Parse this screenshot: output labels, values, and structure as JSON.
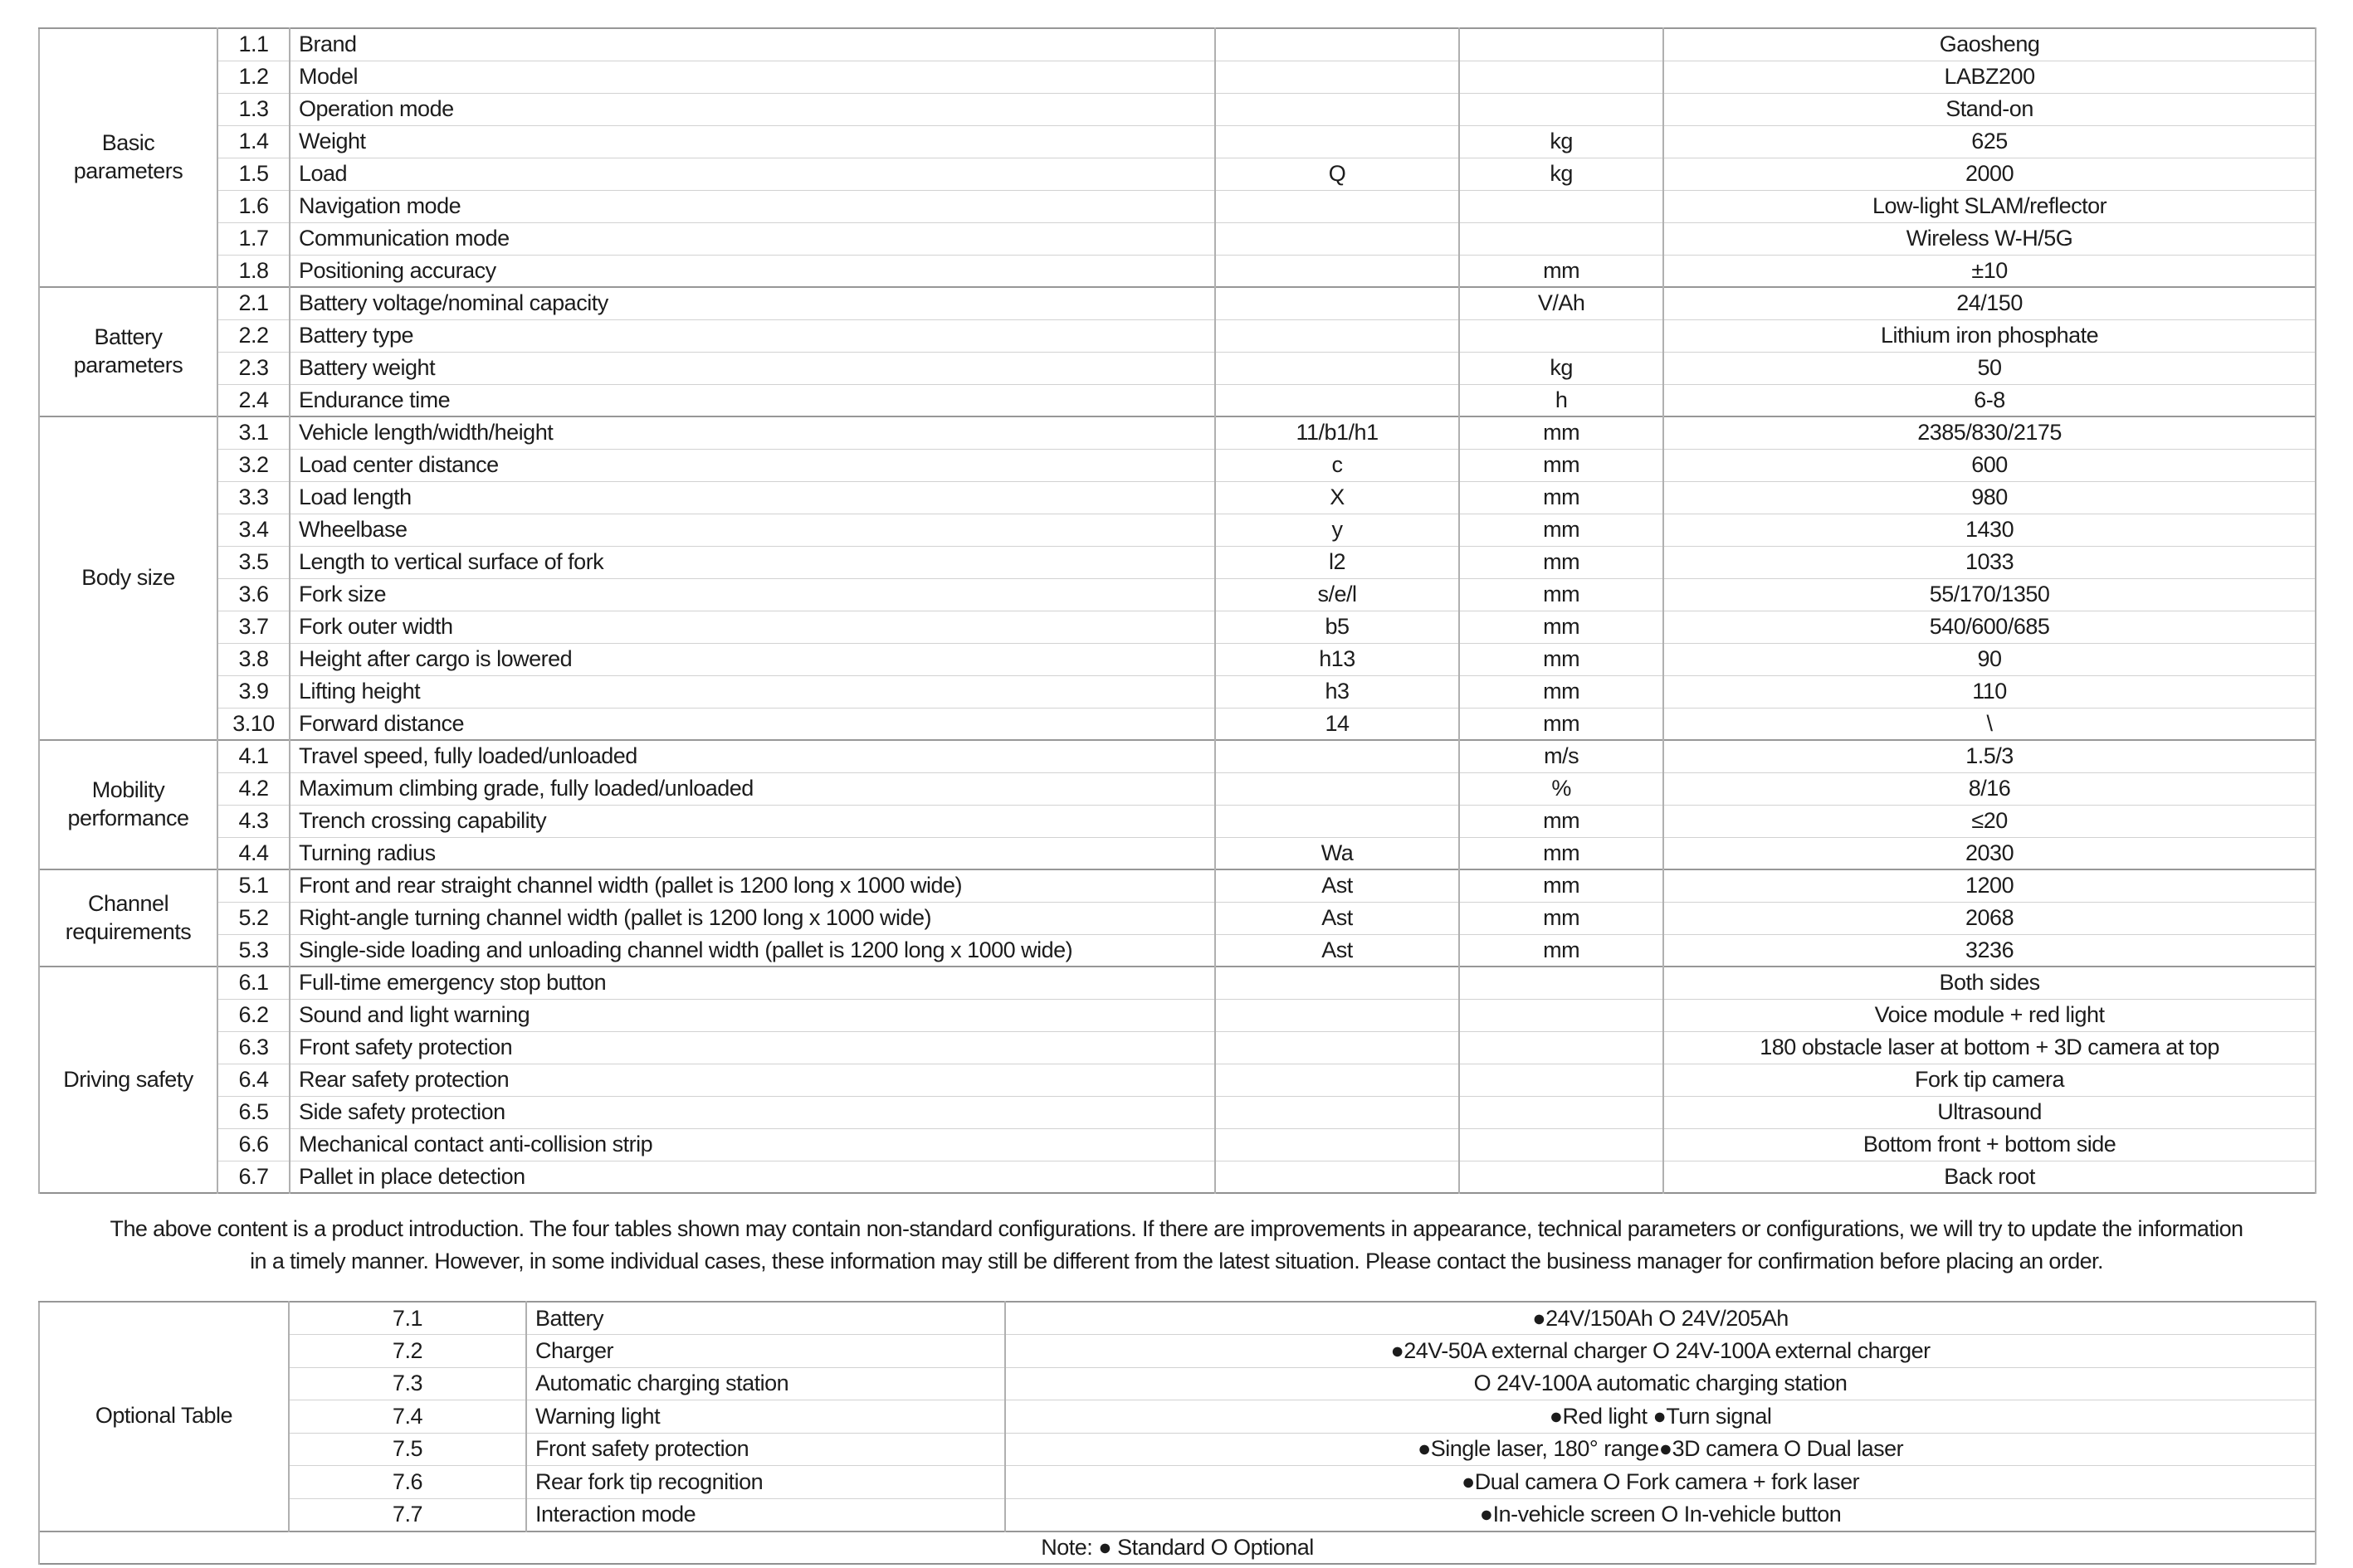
{
  "main_table": {
    "sections": [
      {
        "category": "Basic parameters",
        "rows": [
          {
            "num": "1.1",
            "desc": "Brand",
            "symbol": "",
            "unit": "",
            "value": "Gaosheng"
          },
          {
            "num": "1.2",
            "desc": "Model",
            "symbol": "",
            "unit": "",
            "value": "LABZ200"
          },
          {
            "num": "1.3",
            "desc": "Operation mode",
            "symbol": "",
            "unit": "",
            "value": "Stand-on"
          },
          {
            "num": "1.4",
            "desc": "Weight",
            "symbol": "",
            "unit": "kg",
            "value": "625"
          },
          {
            "num": "1.5",
            "desc": "Load",
            "symbol": "Q",
            "unit": "kg",
            "value": "2000"
          },
          {
            "num": "1.6",
            "desc": "Navigation mode",
            "symbol": "",
            "unit": "",
            "value": "Low-light SLAM/reflector"
          },
          {
            "num": "1.7",
            "desc": "Communication mode",
            "symbol": "",
            "unit": "",
            "value": "Wireless W-H/5G"
          },
          {
            "num": "1.8",
            "desc": "Positioning accuracy",
            "symbol": "",
            "unit": "mm",
            "value": "±10"
          }
        ]
      },
      {
        "category": "Battery parameters",
        "rows": [
          {
            "num": "2.1",
            "desc": "Battery voltage/nominal capacity",
            "symbol": "",
            "unit": "V/Ah",
            "value": "24/150"
          },
          {
            "num": "2.2",
            "desc": "Battery type",
            "symbol": "",
            "unit": "",
            "value": "Lithium iron phosphate"
          },
          {
            "num": "2.3",
            "desc": "Battery weight",
            "symbol": "",
            "unit": "kg",
            "value": "50"
          },
          {
            "num": "2.4",
            "desc": "Endurance time",
            "symbol": "",
            "unit": "h",
            "value": "6-8"
          }
        ]
      },
      {
        "category": "Body size",
        "rows": [
          {
            "num": "3.1",
            "desc": "Vehicle length/width/height",
            "symbol": "11/b1/h1",
            "unit": "mm",
            "value": "2385/830/2175"
          },
          {
            "num": "3.2",
            "desc": "Load center distance",
            "symbol": "c",
            "unit": "mm",
            "value": "600"
          },
          {
            "num": "3.3",
            "desc": "Load length",
            "symbol": "X",
            "unit": "mm",
            "value": "980"
          },
          {
            "num": "3.4",
            "desc": "Wheelbase",
            "symbol": "y",
            "unit": "mm",
            "value": "1430"
          },
          {
            "num": "3.5",
            "desc": "Length to vertical surface of fork",
            "symbol": "l2",
            "unit": "mm",
            "value": "1033"
          },
          {
            "num": "3.6",
            "desc": "Fork size",
            "symbol": "s/e/l",
            "unit": "mm",
            "value": "55/170/1350"
          },
          {
            "num": "3.7",
            "desc": "Fork outer width",
            "symbol": "b5",
            "unit": "mm",
            "value": "540/600/685"
          },
          {
            "num": "3.8",
            "desc": "Height after cargo is lowered",
            "symbol": "h13",
            "unit": "mm",
            "value": "90"
          },
          {
            "num": "3.9",
            "desc": "Lifting height",
            "symbol": "h3",
            "unit": "mm",
            "value": "110"
          },
          {
            "num": "3.10",
            "desc": "Forward distance",
            "symbol": "14",
            "unit": "mm",
            "value": "\\"
          }
        ]
      },
      {
        "category": "Mobility performance",
        "rows": [
          {
            "num": "4.1",
            "desc": "Travel speed, fully loaded/unloaded",
            "symbol": "",
            "unit": "m/s",
            "value": "1.5/3"
          },
          {
            "num": "4.2",
            "desc": "Maximum climbing grade, fully loaded/unloaded",
            "symbol": "",
            "unit": "%",
            "value": "8/16"
          },
          {
            "num": "4.3",
            "desc": "Trench crossing capability",
            "symbol": "",
            "unit": "mm",
            "value": "≤20"
          },
          {
            "num": "4.4",
            "desc": "Turning radius",
            "symbol": "Wa",
            "unit": "mm",
            "value": "2030"
          }
        ]
      },
      {
        "category": "Channel requirements",
        "rows": [
          {
            "num": "5.1",
            "desc": "Front and rear straight channel width (pallet is 1200 long x 1000 wide)",
            "symbol": "Ast",
            "unit": "mm",
            "value": "1200"
          },
          {
            "num": "5.2",
            "desc": "Right-angle turning channel width (pallet is 1200 long x 1000 wide)",
            "symbol": "Ast",
            "unit": "mm",
            "value": "2068"
          },
          {
            "num": "5.3",
            "desc": "Single-side loading and unloading channel width (pallet is 1200 long x 1000 wide)",
            "symbol": "Ast",
            "unit": "mm",
            "value": "3236"
          }
        ]
      },
      {
        "category": "Driving safety",
        "rows": [
          {
            "num": "6.1",
            "desc": "Full-time emergency stop button",
            "symbol": "",
            "unit": "",
            "value": "Both sides"
          },
          {
            "num": "6.2",
            "desc": "Sound and light warning",
            "symbol": "",
            "unit": "",
            "value": "Voice module + red light"
          },
          {
            "num": "6.3",
            "desc": "Front safety protection",
            "symbol": "",
            "unit": "",
            "value": "180 obstacle laser at bottom + 3D camera at top"
          },
          {
            "num": "6.4",
            "desc": "Rear safety protection",
            "symbol": "",
            "unit": "",
            "value": "Fork tip camera"
          },
          {
            "num": "6.5",
            "desc": "Side safety protection",
            "symbol": "",
            "unit": "",
            "value": "Ultrasound"
          },
          {
            "num": "6.6",
            "desc": "Mechanical contact anti-collision strip",
            "symbol": "",
            "unit": "",
            "value": "Bottom front + bottom side"
          },
          {
            "num": "6.7",
            "desc": "Pallet in place detection",
            "symbol": "",
            "unit": "",
            "value": "Back root"
          }
        ]
      }
    ]
  },
  "disclaimer": {
    "line1": "The above content is a product introduction. The four tables shown may contain non-standard configurations. If there are improvements in appearance, technical parameters or configurations, we will try to update the information",
    "line2": "in a timely manner. However, in some individual cases, these information may still be different from the latest situation. Please contact the business manager for confirmation before placing an order."
  },
  "optional_table": {
    "category": "Optional Table",
    "rows": [
      {
        "num": "7.1",
        "desc": "Battery",
        "value": "●24V/150Ah O 24V/205Ah"
      },
      {
        "num": "7.2",
        "desc": "Charger",
        "value": "●24V-50A external charger O 24V-100A external charger"
      },
      {
        "num": "7.3",
        "desc": "Automatic charging station",
        "value": "O 24V-100A automatic charging station"
      },
      {
        "num": "7.4",
        "desc": "Warning light",
        "value": "●Red light ●Turn signal"
      },
      {
        "num": "7.5",
        "desc": "Front safety protection",
        "value": "●Single laser, 180° range●3D camera O Dual laser"
      },
      {
        "num": "7.6",
        "desc": "Rear fork tip recognition",
        "value": "●Dual camera O Fork camera + fork laser"
      },
      {
        "num": "7.7",
        "desc": "Interaction mode",
        "value": "●In-vehicle screen O In-vehicle button"
      }
    ],
    "note": "Note: ● Standard O Optional"
  }
}
